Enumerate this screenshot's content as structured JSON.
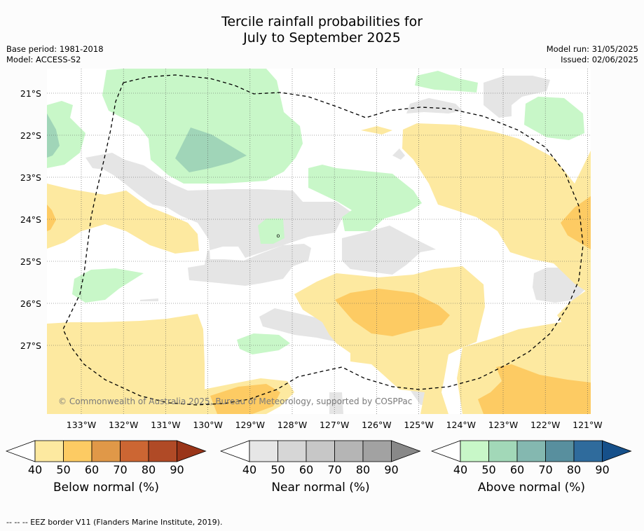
{
  "title_line1": "Tercile rainfall probabilities for",
  "title_line2": "July to September 2025",
  "base_period": "Base period: 1981-2018",
  "model": "Model: ACCESS-S2",
  "model_run": "Model run: 31/05/2025",
  "issued": "Issued: 02/06/2025",
  "copyright": "© Commonwealth of Australia 2025, Bureau of Meteorology, supported by COSPPac",
  "map": {
    "lon_ticks": [
      "133°W",
      "132°W",
      "131°W",
      "130°W",
      "129°W",
      "128°W",
      "127°W",
      "126°W",
      "125°W",
      "124°W",
      "123°W",
      "122°W",
      "121°W"
    ],
    "lat_ticks": [
      "21°S",
      "22°S",
      "23°S",
      "24°S",
      "25°S",
      "26°S",
      "27°S"
    ],
    "colors": {
      "below40": "#fde9a0",
      "below50": "#fdcb63",
      "near40": "#e5e5e5",
      "above40": "#c8f7c8",
      "above50": "#a0d5b8"
    }
  },
  "colorbars": [
    {
      "caption": "Below normal (%)",
      "ticks": [
        "40",
        "50",
        "60",
        "70",
        "80",
        "90"
      ],
      "colors": [
        "#ffffff",
        "#fde9a0",
        "#fdcb63",
        "#e09848",
        "#cc6633",
        "#b04a26",
        "#9a3519"
      ]
    },
    {
      "caption": "Near normal (%)",
      "ticks": [
        "40",
        "50",
        "60",
        "70",
        "80",
        "90"
      ],
      "colors": [
        "#ffffff",
        "#e6e6e6",
        "#d6d6d6",
        "#c7c7c7",
        "#b5b5b5",
        "#a2a2a2",
        "#888888"
      ]
    },
    {
      "caption": "Above normal (%)",
      "ticks": [
        "40",
        "50",
        "60",
        "70",
        "80",
        "90"
      ],
      "colors": [
        "#ffffff",
        "#c8f7c8",
        "#a2d8b8",
        "#84b8b0",
        "#588f9e",
        "#2f6b9c",
        "#16508a"
      ]
    }
  ],
  "footer": "--  --  -- EEZ border V11 (Flanders Marine Institute, 2019)."
}
